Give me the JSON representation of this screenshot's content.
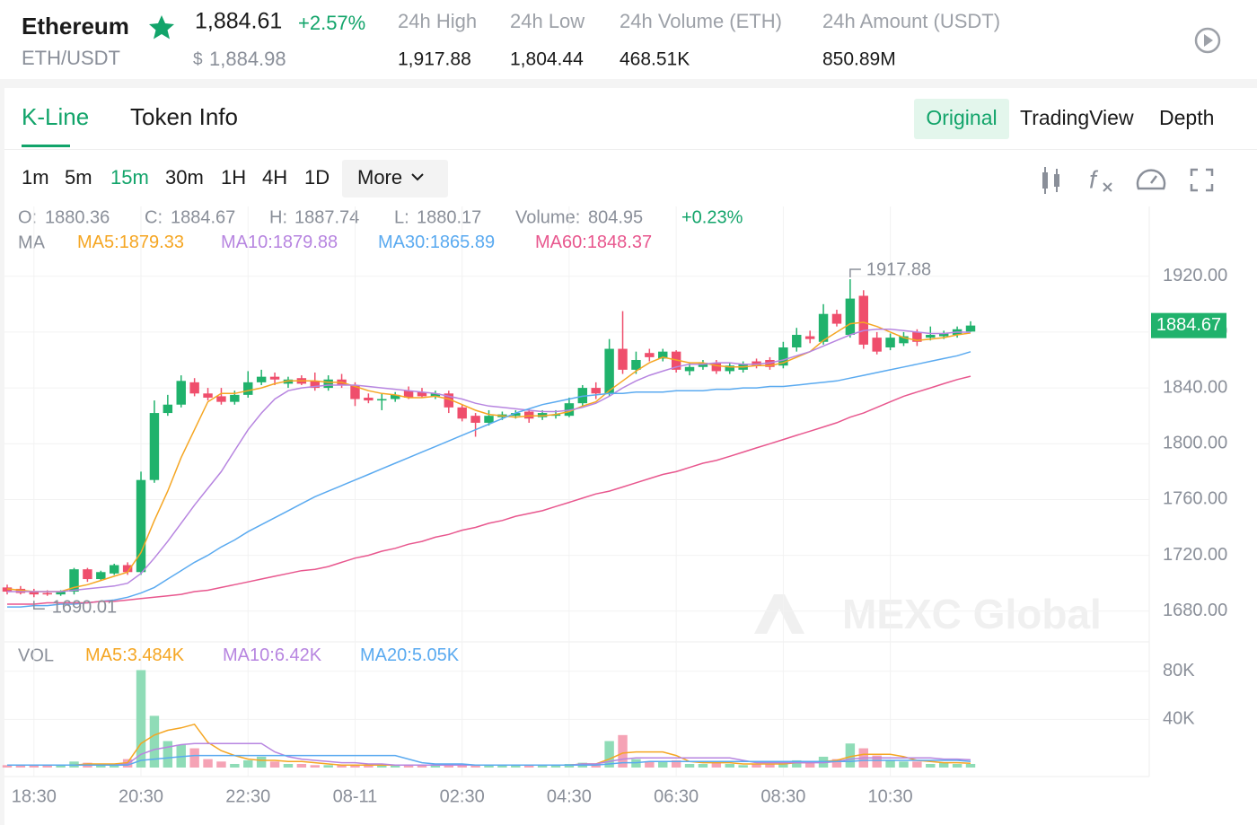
{
  "header": {
    "name": "Ethereum",
    "pair": "ETH/USDT",
    "price": "1,884.61",
    "change": "+2.57%",
    "usd_symbol": "$",
    "usd_price": "1,884.98",
    "stats": [
      {
        "label": "24h High",
        "value": "1,917.88"
      },
      {
        "label": "24h Low",
        "value": "1,804.44"
      },
      {
        "label": "24h Volume (ETH)",
        "value": "468.51K"
      },
      {
        "label": "24h Amount (USDT)",
        "value": "850.89M"
      }
    ]
  },
  "tabs": [
    "K-Line",
    "Token Info"
  ],
  "views": [
    "Original",
    "TradingView",
    "Depth"
  ],
  "intervals": [
    "1m",
    "5m",
    "15m",
    "30m",
    "1H",
    "4H",
    "1D"
  ],
  "more": "More",
  "chart_data": {
    "type": "candlestick",
    "info": {
      "open_label": "O:",
      "close_label": "C:",
      "high_label": "H:",
      "low_label": "L:",
      "volume_label": "Volume:",
      "volume": 804.95,
      "change": "+0.23%"
    },
    "ma_label": "MA",
    "watermark": "MEXC Global",
    "up_color": "#20b26c",
    "down_color": "#ef4e6c",
    "grid": true,
    "categories": [
      null,
      null,
      "18:30",
      null,
      null,
      null,
      null,
      null,
      null,
      null,
      "20:30",
      null,
      null,
      null,
      null,
      null,
      null,
      null,
      "22:30",
      null,
      null,
      null,
      null,
      null,
      null,
      null,
      "08-11",
      null,
      null,
      null,
      null,
      null,
      null,
      null,
      "02:30",
      null,
      null,
      null,
      null,
      null,
      null,
      null,
      "04:30",
      null,
      null,
      null,
      null,
      null,
      null,
      null,
      "06:30",
      null,
      null,
      null,
      null,
      null,
      null,
      null,
      "08:30",
      null,
      null,
      null,
      null,
      null,
      null,
      null,
      "10:30",
      null,
      null,
      null,
      null,
      null,
      null
    ],
    "open": [
      1697,
      1696,
      1694,
      1693,
      1692,
      1694,
      1710,
      1703,
      1707,
      1713,
      1708,
      1774,
      1822,
      1828,
      1844,
      1836,
      1834,
      1830,
      1835,
      1844,
      1848,
      1843,
      1847,
      1845,
      1840,
      1846,
      1842,
      1833,
      1831,
      1832,
      1838,
      1837,
      1834,
      1836,
      1826,
      1820,
      1815,
      1819,
      1820,
      1823,
      1819,
      1820,
      1820,
      1829,
      1840,
      1836,
      1868,
      1853,
      1865,
      1861,
      1866,
      1852,
      1855,
      1858,
      1852,
      1853,
      1859,
      1860,
      1856,
      1869,
      1877,
      1873,
      1893,
      1878,
      1906,
      1876,
      1869,
      1872,
      1880,
      1876,
      1877,
      1878,
      1880.36
    ],
    "high": [
      1699,
      1698,
      1696,
      1695,
      1695,
      1711,
      1711,
      1709,
      1714,
      1715,
      1780,
      1831,
      1835,
      1849,
      1847,
      1840,
      1840,
      1838,
      1852,
      1853,
      1851,
      1848,
      1849,
      1851,
      1849,
      1850,
      1844,
      1836,
      1836,
      1837,
      1841,
      1840,
      1838,
      1838,
      1828,
      1822,
      1824,
      1823,
      1824,
      1825,
      1824,
      1824,
      1833,
      1842,
      1844,
      1875,
      1895,
      1866,
      1868,
      1868,
      1867,
      1858,
      1860,
      1860,
      1858,
      1859,
      1861,
      1862,
      1873,
      1883,
      1881,
      1900,
      1896,
      1917.88,
      1910,
      1880,
      1879,
      1880,
      1882,
      1884,
      1881,
      1884,
      1887.74
    ],
    "low": [
      1692,
      1692,
      1690.01,
      1691,
      1691,
      1692,
      1701,
      1702,
      1706,
      1706,
      1706,
      1772,
      1820,
      1826,
      1834,
      1831,
      1828,
      1828,
      1833,
      1842,
      1842,
      1840,
      1842,
      1838,
      1838,
      1840,
      1827,
      1829,
      1824,
      1830,
      1832,
      1833,
      1832,
      1822,
      1816,
      1805,
      1813,
      1817,
      1818,
      1815,
      1817,
      1818,
      1819,
      1827,
      1832,
      1834,
      1850,
      1850,
      1859,
      1859,
      1851,
      1849,
      1853,
      1850,
      1850,
      1851,
      1854,
      1853,
      1854,
      1866,
      1872,
      1871,
      1884,
      1876,
      1868,
      1864,
      1867,
      1870,
      1870,
      1874,
      1875,
      1876,
      1880.17
    ],
    "close": [
      1694,
      1693,
      1692,
      1692,
      1694,
      1710,
      1703,
      1708,
      1713,
      1708,
      1774,
      1822,
      1828,
      1845,
      1836,
      1833,
      1830,
      1835,
      1844,
      1848,
      1846,
      1846,
      1843,
      1840,
      1846,
      1842,
      1832,
      1831,
      1832,
      1835,
      1833,
      1834,
      1836,
      1826,
      1818,
      1815,
      1820,
      1821,
      1822,
      1818,
      1822,
      1821,
      1829,
      1840,
      1836,
      1868,
      1853,
      1860,
      1862,
      1866,
      1853,
      1855,
      1858,
      1852,
      1856,
      1857,
      1856,
      1855,
      1869,
      1878,
      1875,
      1893,
      1886,
      1904,
      1871,
      1866,
      1876,
      1877,
      1873,
      1878,
      1879,
      1882,
      1884.67
    ],
    "series": [
      {
        "name": "MA5:",
        "color": "#f5a623",
        "values": [
          1696,
          1695,
          1694,
          1694,
          1694,
          1697,
          1699,
          1702,
          1705,
          1708,
          1722,
          1745,
          1766,
          1790,
          1810,
          1830,
          1836,
          1836,
          1838,
          1840,
          1843,
          1845,
          1845,
          1845,
          1844,
          1844,
          1841,
          1838,
          1836,
          1835,
          1833,
          1833,
          1834,
          1832,
          1828,
          1824,
          1821,
          1820,
          1819,
          1820,
          1820,
          1821,
          1823,
          1827,
          1830,
          1838,
          1845,
          1852,
          1858,
          1862,
          1860,
          1858,
          1858,
          1856,
          1855,
          1855,
          1856,
          1856,
          1858,
          1862,
          1866,
          1874,
          1880,
          1886,
          1887,
          1884,
          1880,
          1876,
          1874,
          1875,
          1876,
          1878,
          1879.33
        ]
      },
      {
        "name": "MA10:",
        "color": "#b785e0",
        "values": [
          1694,
          1694,
          1694,
          1694,
          1694,
          1695,
          1696,
          1697,
          1698,
          1700,
          1707,
          1718,
          1730,
          1743,
          1756,
          1768,
          1780,
          1795,
          1810,
          1822,
          1832,
          1838,
          1840,
          1841,
          1842,
          1842,
          1842,
          1841,
          1840,
          1839,
          1838,
          1837,
          1836,
          1834,
          1832,
          1829,
          1827,
          1826,
          1825,
          1824,
          1823,
          1823,
          1824,
          1826,
          1829,
          1834,
          1840,
          1845,
          1849,
          1852,
          1855,
          1857,
          1857,
          1858,
          1858,
          1857,
          1857,
          1858,
          1860,
          1863,
          1866,
          1870,
          1874,
          1878,
          1881,
          1882,
          1882,
          1881,
          1880,
          1879,
          1879,
          1880,
          1879.88
        ]
      },
      {
        "name": "MA30:",
        "color": "#5aaaf0",
        "values": [
          1683,
          1683,
          1684,
          1684,
          1685,
          1685,
          1686,
          1687,
          1688,
          1690,
          1693,
          1697,
          1703,
          1709,
          1715,
          1720,
          1726,
          1731,
          1737,
          1742,
          1747,
          1752,
          1757,
          1762,
          1766,
          1770,
          1774,
          1778,
          1782,
          1786,
          1790,
          1794,
          1798,
          1802,
          1806,
          1810,
          1814,
          1818,
          1822,
          1825,
          1828,
          1830,
          1832,
          1834,
          1835,
          1836,
          1836,
          1837,
          1837,
          1837,
          1838,
          1838,
          1838,
          1839,
          1839,
          1840,
          1840,
          1841,
          1841,
          1842,
          1843,
          1844,
          1845,
          1847,
          1849,
          1851,
          1853,
          1855,
          1857,
          1859,
          1861,
          1863,
          1865.89
        ]
      },
      {
        "name": "MA60:",
        "color": "#e8578e",
        "values": [
          1685,
          1685,
          1685,
          1686,
          1686,
          1686,
          1686,
          1687,
          1687,
          1688,
          1689,
          1690,
          1691,
          1692,
          1694,
          1695,
          1697,
          1699,
          1701,
          1703,
          1705,
          1707,
          1709,
          1710,
          1712,
          1715,
          1718,
          1720,
          1723,
          1725,
          1728,
          1730,
          1733,
          1735,
          1738,
          1740,
          1743,
          1745,
          1748,
          1750,
          1752,
          1755,
          1758,
          1761,
          1764,
          1766,
          1769,
          1772,
          1775,
          1778,
          1780,
          1783,
          1786,
          1788,
          1791,
          1794,
          1797,
          1800,
          1803,
          1806,
          1809,
          1812,
          1815,
          1819,
          1822,
          1826,
          1830,
          1834,
          1837,
          1840,
          1843,
          1846,
          1848.37
        ]
      }
    ],
    "ylim": [
      1658,
      1970
    ],
    "yticks": [
      {
        "value": 1680,
        "label": "1680.00"
      },
      {
        "value": 1720,
        "label": "1720.00"
      },
      {
        "value": 1760,
        "label": "1760.00"
      },
      {
        "value": 1800,
        "label": "1800.00"
      },
      {
        "value": 1840,
        "label": "1840.00"
      },
      {
        "value": 1880,
        "label": "1880.00"
      },
      {
        "value": 1920,
        "label": "1920.00"
      }
    ],
    "volume": {
      "title": "VOL",
      "up_color": "#8fdcb7",
      "down_color": "#f5a3b5",
      "values": [
        2000,
        2000,
        1500,
        1500,
        2000,
        5000,
        4000,
        2000,
        3000,
        7000,
        81000,
        43000,
        22000,
        19000,
        16000,
        7000,
        5000,
        3000,
        6000,
        9000,
        5000,
        3000,
        3000,
        2000,
        2000,
        2000,
        2000,
        1500,
        1500,
        2000,
        2000,
        2000,
        2000,
        3000,
        3000,
        2000,
        2000,
        2000,
        2000,
        2000,
        2000,
        2000,
        3000,
        4000,
        3000,
        22000,
        27000,
        7000,
        5000,
        5000,
        6000,
        3000,
        3000,
        4000,
        3000,
        2000,
        3000,
        3000,
        5000,
        6000,
        4000,
        9000,
        7000,
        20000,
        16000,
        10000,
        6000,
        5000,
        5000,
        3000,
        4000,
        3000,
        3000
      ],
      "series": [
        {
          "name": "MA5:",
          "legend_value": "3.484K",
          "color": "#f5a623",
          "values": [
            2000,
            2000,
            2000,
            2000,
            2000,
            2000,
            3000,
            3000,
            3000,
            4000,
            20000,
            27000,
            31000,
            33000,
            36000,
            21000,
            14000,
            10000,
            7000,
            6000,
            6000,
            5000,
            5000,
            4000,
            3000,
            2000,
            2000,
            2000,
            2000,
            2000,
            2000,
            2000,
            2000,
            2000,
            2000,
            2000,
            2000,
            2000,
            2000,
            2000,
            2000,
            2000,
            2000,
            3000,
            3000,
            7000,
            12000,
            13000,
            13000,
            13000,
            10000,
            5000,
            4000,
            4000,
            4000,
            3000,
            3000,
            3000,
            3000,
            4000,
            4000,
            5000,
            6000,
            9000,
            11000,
            11000,
            11000,
            9000,
            6000,
            5000,
            4000,
            4000,
            3484
          ]
        },
        {
          "name": "MA10:",
          "legend_value": "6.42K",
          "color": "#b785e0",
          "values": [
            2000,
            2000,
            2000,
            2000,
            2000,
            2000,
            2000,
            2000,
            2000,
            3000,
            11000,
            15000,
            17000,
            19000,
            20000,
            20000,
            20000,
            20000,
            20000,
            20000,
            13000,
            9000,
            7000,
            6000,
            5000,
            4000,
            4000,
            3000,
            3000,
            2000,
            2000,
            2000,
            2000,
            2000,
            2000,
            2000,
            2000,
            2000,
            2000,
            2000,
            2000,
            2000,
            2000,
            3000,
            3000,
            5000,
            7000,
            8000,
            8000,
            8000,
            8000,
            8000,
            8000,
            8000,
            8000,
            6000,
            4000,
            4000,
            4000,
            4000,
            4000,
            4000,
            5000,
            7000,
            8000,
            8000,
            8000,
            8000,
            8000,
            8000,
            7000,
            7000,
            6420
          ]
        },
        {
          "name": "MA20:",
          "legend_value": "5.05K",
          "color": "#5aaaf0",
          "values": [
            2000,
            2000,
            2000,
            2000,
            2000,
            2000,
            2000,
            2000,
            2000,
            2000,
            6000,
            7000,
            8000,
            9000,
            10000,
            10000,
            10000,
            10000,
            10000,
            10000,
            10000,
            10000,
            10000,
            10000,
            10000,
            10000,
            10000,
            10000,
            10000,
            10000,
            7000,
            4000,
            3000,
            3000,
            3000,
            2000,
            2000,
            2000,
            2000,
            2000,
            2000,
            2000,
            2000,
            2000,
            2000,
            3000,
            4000,
            4000,
            5000,
            5000,
            5000,
            5000,
            5000,
            5000,
            5000,
            5000,
            5000,
            5000,
            5000,
            5000,
            5000,
            5000,
            5000,
            5000,
            6000,
            6000,
            6000,
            6000,
            6000,
            6000,
            6000,
            6000,
            5050
          ]
        }
      ],
      "ylim": [
        0,
        100000
      ],
      "yticks": [
        {
          "value": 40000,
          "label": "40K"
        },
        {
          "value": 80000,
          "label": "80K"
        }
      ]
    }
  }
}
